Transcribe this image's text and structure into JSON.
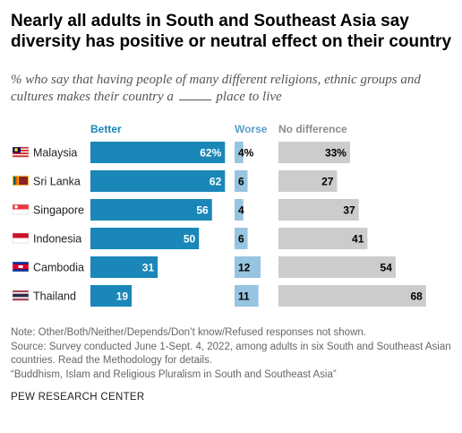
{
  "title": "Nearly all adults in South and Southeast Asia say diversity has positive or neutral effect on their country",
  "subtitle": {
    "before": "% who say that having people of many different religions, ethnic groups and cultures makes their country a",
    "after": "place to live"
  },
  "colors": {
    "better": "#1a87b8",
    "worse": "#97c4e0",
    "no_difference": "#cccccc",
    "better_label": "#1a87b8",
    "worse_label": "#5a9fc9",
    "no_difference_label": "#8c8c8c"
  },
  "chart_data": {
    "type": "bar",
    "categories": [
      "Malaysia",
      "Sri Lanka",
      "Singapore",
      "Indonesia",
      "Cambodia",
      "Thailand"
    ],
    "flag_icons": [
      "malaysia-flag-icon",
      "sri-lanka-flag-icon",
      "singapore-flag-icon",
      "indonesia-flag-icon",
      "cambodia-flag-icon",
      "thailand-flag-icon"
    ],
    "series": [
      {
        "name": "Better",
        "values": [
          62,
          62,
          56,
          50,
          31,
          19
        ],
        "labels": [
          "62%",
          "62",
          "56",
          "50",
          "31",
          "19"
        ]
      },
      {
        "name": "Worse",
        "values": [
          4,
          6,
          4,
          6,
          12,
          11
        ],
        "labels": [
          "4%",
          "6",
          "4",
          "6",
          "12",
          "11"
        ]
      },
      {
        "name": "No difference",
        "values": [
          33,
          27,
          37,
          41,
          54,
          68
        ],
        "labels": [
          "33%",
          "27",
          "37",
          "41",
          "54",
          "68"
        ]
      }
    ],
    "xlabel": "",
    "ylabel": "",
    "xlim": [
      0,
      100
    ],
    "grid": false,
    "legend": "top"
  },
  "notes": [
    "Note: Other/Both/Neither/Depends/Don’t know/Refused responses not shown.",
    "Source: Survey conducted June 1-Sept. 4, 2022, among adults in six South and Southeast Asian countries. Read the Methodology for details.",
    "“Buddhism, Islam and Religious Pluralism in South and Southeast Asia”"
  ],
  "source_org": "PEW RESEARCH CENTER"
}
